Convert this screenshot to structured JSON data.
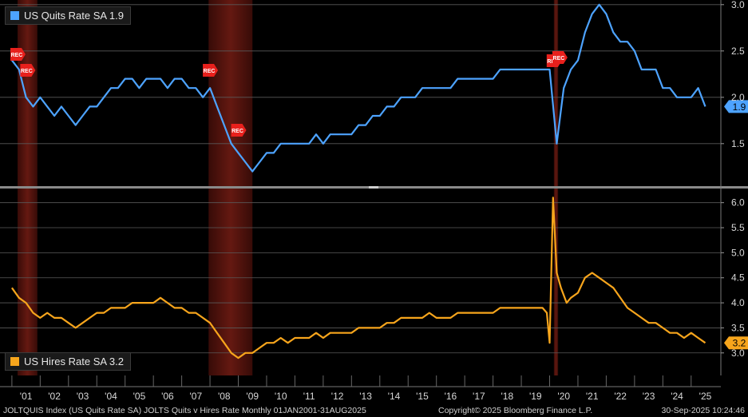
{
  "chart_data": [
    {
      "type": "line",
      "legend": "US Quits Rate SA 1.9",
      "color": "#4da3ff",
      "last_value_label": "1.9",
      "ylim": [
        1.05,
        3.05
      ],
      "yticks": [
        "1.5",
        "2.0",
        "2.5",
        "3.0"
      ],
      "x": [
        2001.0,
        2001.25,
        2001.5,
        2001.75,
        2002.0,
        2002.25,
        2002.5,
        2002.75,
        2003.0,
        2003.25,
        2003.5,
        2003.75,
        2004.0,
        2004.25,
        2004.5,
        2004.75,
        2005.0,
        2005.25,
        2005.5,
        2005.75,
        2006.0,
        2006.25,
        2006.5,
        2006.75,
        2007.0,
        2007.25,
        2007.5,
        2007.75,
        2008.0,
        2008.25,
        2008.5,
        2008.75,
        2009.0,
        2009.25,
        2009.5,
        2009.75,
        2010.0,
        2010.25,
        2010.5,
        2010.75,
        2011.0,
        2011.25,
        2011.5,
        2011.75,
        2012.0,
        2012.25,
        2012.5,
        2012.75,
        2013.0,
        2013.25,
        2013.5,
        2013.75,
        2014.0,
        2014.25,
        2014.5,
        2014.75,
        2015.0,
        2015.25,
        2015.5,
        2015.75,
        2016.0,
        2016.25,
        2016.5,
        2016.75,
        2017.0,
        2017.25,
        2017.5,
        2017.75,
        2018.0,
        2018.25,
        2018.5,
        2018.75,
        2019.0,
        2019.25,
        2019.5,
        2019.75,
        2020.0,
        2020.25,
        2020.5,
        2020.75,
        2021.0,
        2021.25,
        2021.5,
        2021.75,
        2022.0,
        2022.25,
        2022.5,
        2022.75,
        2023.0,
        2023.25,
        2023.5,
        2023.75,
        2024.0,
        2024.25,
        2024.5,
        2024.75,
        2025.0,
        2025.25,
        2025.5
      ],
      "values": [
        2.4,
        2.3,
        2.0,
        1.9,
        2.0,
        1.9,
        1.8,
        1.9,
        1.8,
        1.7,
        1.8,
        1.9,
        1.9,
        2.0,
        2.1,
        2.1,
        2.2,
        2.2,
        2.1,
        2.2,
        2.2,
        2.2,
        2.1,
        2.2,
        2.2,
        2.1,
        2.1,
        2.0,
        2.1,
        1.9,
        1.7,
        1.5,
        1.4,
        1.3,
        1.2,
        1.3,
        1.4,
        1.4,
        1.5,
        1.5,
        1.5,
        1.5,
        1.5,
        1.6,
        1.5,
        1.6,
        1.6,
        1.6,
        1.6,
        1.7,
        1.7,
        1.8,
        1.8,
        1.9,
        1.9,
        2.0,
        2.0,
        2.0,
        2.1,
        2.1,
        2.1,
        2.1,
        2.1,
        2.2,
        2.2,
        2.2,
        2.2,
        2.2,
        2.2,
        2.3,
        2.3,
        2.3,
        2.3,
        2.3,
        2.3,
        2.3,
        2.3,
        1.5,
        2.1,
        2.3,
        2.4,
        2.7,
        2.9,
        3.0,
        2.9,
        2.7,
        2.6,
        2.6,
        2.5,
        2.3,
        2.3,
        2.3,
        2.1,
        2.1,
        2.0,
        2.0,
        2.0,
        2.1,
        1.9
      ],
      "recessions": [
        [
          2001.2,
          2001.9
        ],
        [
          2007.95,
          2009.5
        ],
        [
          2020.15,
          2020.3
        ]
      ],
      "rec_label": "REC"
    },
    {
      "type": "line",
      "legend": "US Hires Rate SA 3.2",
      "color": "#f7a51c",
      "last_value_label": "3.2",
      "ylim": [
        2.55,
        6.25
      ],
      "yticks": [
        "3.0",
        "3.5",
        "4.0",
        "4.5",
        "5.0",
        "5.5",
        "6.0"
      ],
      "x": [
        2001.0,
        2001.25,
        2001.5,
        2001.75,
        2002.0,
        2002.25,
        2002.5,
        2002.75,
        2003.0,
        2003.25,
        2003.5,
        2003.75,
        2004.0,
        2004.25,
        2004.5,
        2004.75,
        2005.0,
        2005.25,
        2005.5,
        2005.75,
        2006.0,
        2006.25,
        2006.5,
        2006.75,
        2007.0,
        2007.25,
        2007.5,
        2007.75,
        2008.0,
        2008.25,
        2008.5,
        2008.75,
        2009.0,
        2009.25,
        2009.5,
        2009.75,
        2010.0,
        2010.25,
        2010.5,
        2010.75,
        2011.0,
        2011.25,
        2011.5,
        2011.75,
        2012.0,
        2012.25,
        2012.5,
        2012.75,
        2013.0,
        2013.25,
        2013.5,
        2013.75,
        2014.0,
        2014.25,
        2014.5,
        2014.75,
        2015.0,
        2015.25,
        2015.5,
        2015.75,
        2016.0,
        2016.25,
        2016.5,
        2016.75,
        2017.0,
        2017.25,
        2017.5,
        2017.75,
        2018.0,
        2018.25,
        2018.5,
        2018.75,
        2019.0,
        2019.25,
        2019.5,
        2019.75,
        2019.9,
        2020.0,
        2020.12,
        2020.25,
        2020.4,
        2020.6,
        2020.75,
        2021.0,
        2021.25,
        2021.5,
        2021.75,
        2022.0,
        2022.25,
        2022.5,
        2022.75,
        2023.0,
        2023.25,
        2023.5,
        2023.75,
        2024.0,
        2024.25,
        2024.5,
        2024.75,
        2025.0,
        2025.25,
        2025.5
      ],
      "values": [
        4.3,
        4.1,
        4.0,
        3.8,
        3.7,
        3.8,
        3.7,
        3.7,
        3.6,
        3.5,
        3.6,
        3.7,
        3.8,
        3.8,
        3.9,
        3.9,
        3.9,
        4.0,
        4.0,
        4.0,
        4.0,
        4.1,
        4.0,
        3.9,
        3.9,
        3.8,
        3.8,
        3.7,
        3.6,
        3.4,
        3.2,
        3.0,
        2.9,
        3.0,
        3.0,
        3.1,
        3.2,
        3.2,
        3.3,
        3.2,
        3.3,
        3.3,
        3.3,
        3.4,
        3.3,
        3.4,
        3.4,
        3.4,
        3.4,
        3.5,
        3.5,
        3.5,
        3.5,
        3.6,
        3.6,
        3.7,
        3.7,
        3.7,
        3.7,
        3.8,
        3.7,
        3.7,
        3.7,
        3.8,
        3.8,
        3.8,
        3.8,
        3.8,
        3.8,
        3.9,
        3.9,
        3.9,
        3.9,
        3.9,
        3.9,
        3.9,
        3.8,
        3.2,
        6.1,
        4.6,
        4.3,
        4.0,
        4.1,
        4.2,
        4.5,
        4.6,
        4.5,
        4.4,
        4.3,
        4.1,
        3.9,
        3.8,
        3.7,
        3.6,
        3.6,
        3.5,
        3.4,
        3.4,
        3.3,
        3.4,
        3.3,
        3.2
      ]
    }
  ],
  "x_axis": {
    "ticks": [
      "'01",
      "'02",
      "'03",
      "'04",
      "'05",
      "'06",
      "'07",
      "'08",
      "'09",
      "'10",
      "'11",
      "'12",
      "'13",
      "'14",
      "'15",
      "'16",
      "'17",
      "'18",
      "'19",
      "'20",
      "'21",
      "'22",
      "'23",
      "'24",
      "'25"
    ]
  },
  "footer": {
    "left": "JOLTQUIS Index (US Quits Rate SA) JOLTS Quits v Hires Rate  Monthly 01JAN2001-31AUG2025",
    "center": "Copyright© 2025 Bloomberg Finance L.P.",
    "right": "30-Sep-2025 10:24:46"
  },
  "colors": {
    "grid": "#5a5a5a",
    "recession": "#5a1712",
    "divider": "#8a8a8a"
  }
}
